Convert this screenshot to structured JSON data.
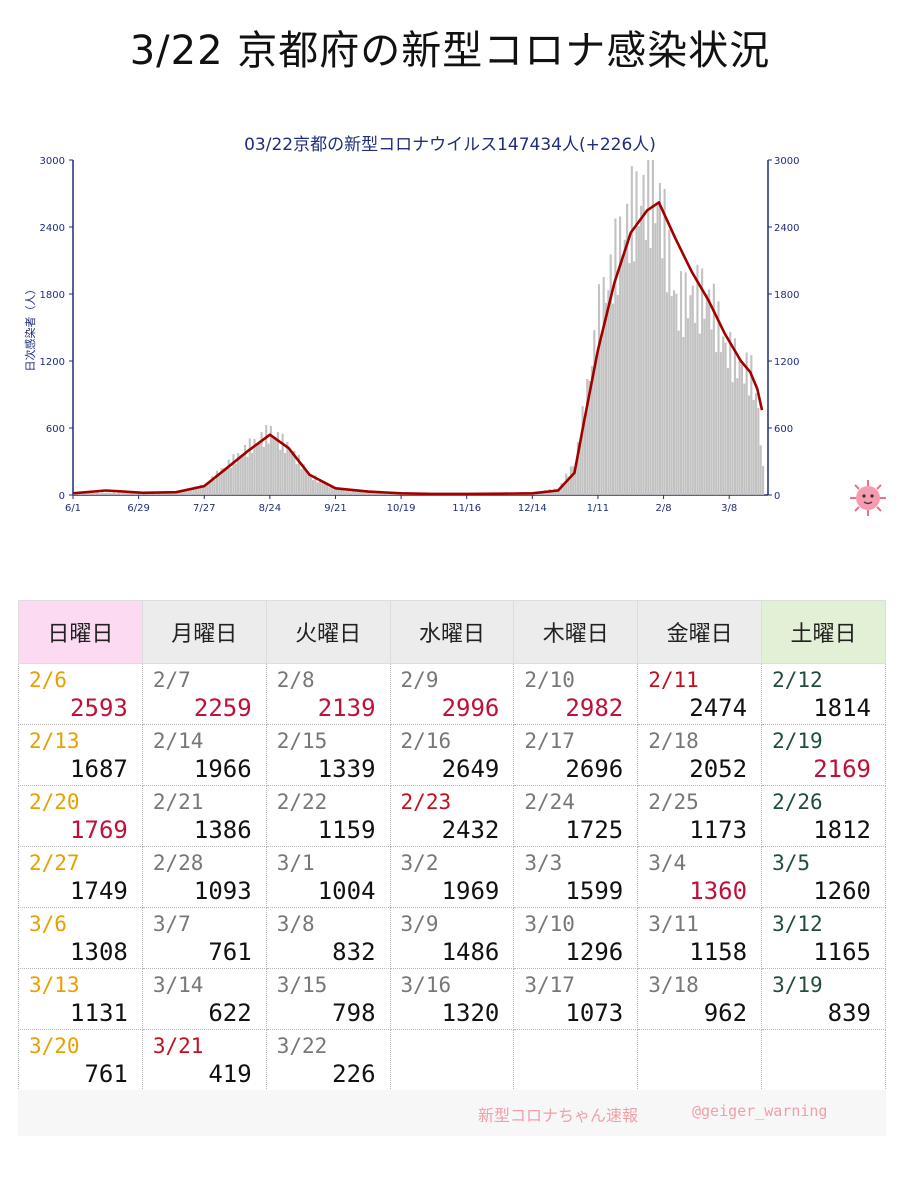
{
  "page": {
    "title": "3/22 京都府の新型コロナ感染状況"
  },
  "chart_data": {
    "type": "bar+line",
    "title": "03/22京都の新型コロナウイルス147434人(+226人)",
    "ylabel": "日次感染者（人）",
    "ylim": [
      0,
      3000
    ],
    "yticks": [
      "0",
      "600",
      "1200",
      "1800",
      "2400",
      "3000"
    ],
    "x_start": "6/1",
    "x_end": "3/22",
    "xticks": [
      "6/1",
      "6/29",
      "7/27",
      "8/24",
      "9/21",
      "10/19",
      "11/16",
      "12/14",
      "1/11",
      "2/8",
      "3/8"
    ],
    "x": [
      "6/1",
      "6/15",
      "7/1",
      "7/15",
      "7/27",
      "8/5",
      "8/15",
      "8/24",
      "9/1",
      "9/10",
      "9/21",
      "10/5",
      "10/19",
      "11/1",
      "11/16",
      "12/1",
      "12/14",
      "12/25",
      "1/1",
      "1/5",
      "1/11",
      "1/18",
      "1/25",
      "2/1",
      "2/6",
      "2/13",
      "2/20",
      "2/27",
      "3/6",
      "3/13",
      "3/17",
      "3/20",
      "3/22"
    ],
    "series": [
      {
        "values": [
          20,
          20,
          18,
          25,
          90,
          260,
          430,
          560,
          410,
          170,
          50,
          25,
          15,
          10,
          10,
          15,
          20,
          60,
          300,
          800,
          1600,
          2100,
          2500,
          2700,
          2593,
          1687,
          1769,
          1749,
          1308,
          1131,
          1073,
          761,
          226
        ]
      },
      {
        "values": [
          15,
          40,
          20,
          25,
          80,
          230,
          400,
          540,
          420,
          180,
          60,
          30,
          15,
          10,
          10,
          12,
          15,
          40,
          200,
          650,
          1300,
          1900,
          2350,
          2550,
          2620,
          2300,
          2000,
          1750,
          1450,
          1200,
          1100,
          950,
          760
        ]
      }
    ],
    "colors": {
      "bars": "#c2c2c2",
      "line": "#a00000",
      "axis": "#1f2d7a"
    }
  },
  "calendar": {
    "headers": [
      "日曜日",
      "月曜日",
      "火曜日",
      "水曜日",
      "木曜日",
      "金曜日",
      "土曜日"
    ],
    "colors": {
      "sun_date": "#e8a000",
      "holiday_date": "#c0101e",
      "sat_date": "#1e4e3a",
      "weekday_date": "#777777",
      "highlight_value": "#c0103a",
      "normal_value": "#111111"
    },
    "rows": [
      [
        {
          "date": "2/6",
          "value": "2593",
          "dc": "sun",
          "hl": true
        },
        {
          "date": "2/7",
          "value": "2259",
          "dc": "wd",
          "hl": true
        },
        {
          "date": "2/8",
          "value": "2139",
          "dc": "wd",
          "hl": true
        },
        {
          "date": "2/9",
          "value": "2996",
          "dc": "wd",
          "hl": true
        },
        {
          "date": "2/10",
          "value": "2982",
          "dc": "wd",
          "hl": true
        },
        {
          "date": "2/11",
          "value": "2474",
          "dc": "hol",
          "hl": false
        },
        {
          "date": "2/12",
          "value": "1814",
          "dc": "sat",
          "hl": false
        }
      ],
      [
        {
          "date": "2/13",
          "value": "1687",
          "dc": "sun",
          "hl": false
        },
        {
          "date": "2/14",
          "value": "1966",
          "dc": "wd",
          "hl": false
        },
        {
          "date": "2/15",
          "value": "1339",
          "dc": "wd",
          "hl": false
        },
        {
          "date": "2/16",
          "value": "2649",
          "dc": "wd",
          "hl": false
        },
        {
          "date": "2/17",
          "value": "2696",
          "dc": "wd",
          "hl": false
        },
        {
          "date": "2/18",
          "value": "2052",
          "dc": "wd",
          "hl": false
        },
        {
          "date": "2/19",
          "value": "2169",
          "dc": "sat",
          "hl": true
        }
      ],
      [
        {
          "date": "2/20",
          "value": "1769",
          "dc": "sun",
          "hl": true
        },
        {
          "date": "2/21",
          "value": "1386",
          "dc": "wd",
          "hl": false
        },
        {
          "date": "2/22",
          "value": "1159",
          "dc": "wd",
          "hl": false
        },
        {
          "date": "2/23",
          "value": "2432",
          "dc": "hol",
          "hl": false
        },
        {
          "date": "2/24",
          "value": "1725",
          "dc": "wd",
          "hl": false
        },
        {
          "date": "2/25",
          "value": "1173",
          "dc": "wd",
          "hl": false
        },
        {
          "date": "2/26",
          "value": "1812",
          "dc": "sat",
          "hl": false
        }
      ],
      [
        {
          "date": "2/27",
          "value": "1749",
          "dc": "sun",
          "hl": false
        },
        {
          "date": "2/28",
          "value": "1093",
          "dc": "wd",
          "hl": false
        },
        {
          "date": "3/1",
          "value": "1004",
          "dc": "wd",
          "hl": false
        },
        {
          "date": "3/2",
          "value": "1969",
          "dc": "wd",
          "hl": false
        },
        {
          "date": "3/3",
          "value": "1599",
          "dc": "wd",
          "hl": false
        },
        {
          "date": "3/4",
          "value": "1360",
          "dc": "wd",
          "hl": true
        },
        {
          "date": "3/5",
          "value": "1260",
          "dc": "sat",
          "hl": false
        }
      ],
      [
        {
          "date": "3/6",
          "value": "1308",
          "dc": "sun",
          "hl": false
        },
        {
          "date": "3/7",
          "value": "761",
          "dc": "wd",
          "hl": false
        },
        {
          "date": "3/8",
          "value": "832",
          "dc": "wd",
          "hl": false
        },
        {
          "date": "3/9",
          "value": "1486",
          "dc": "wd",
          "hl": false
        },
        {
          "date": "3/10",
          "value": "1296",
          "dc": "wd",
          "hl": false
        },
        {
          "date": "3/11",
          "value": "1158",
          "dc": "wd",
          "hl": false
        },
        {
          "date": "3/12",
          "value": "1165",
          "dc": "sat",
          "hl": false
        }
      ],
      [
        {
          "date": "3/13",
          "value": "1131",
          "dc": "sun",
          "hl": false
        },
        {
          "date": "3/14",
          "value": "622",
          "dc": "wd",
          "hl": false
        },
        {
          "date": "3/15",
          "value": "798",
          "dc": "wd",
          "hl": false
        },
        {
          "date": "3/16",
          "value": "1320",
          "dc": "wd",
          "hl": false
        },
        {
          "date": "3/17",
          "value": "1073",
          "dc": "wd",
          "hl": false
        },
        {
          "date": "3/18",
          "value": "962",
          "dc": "wd",
          "hl": false
        },
        {
          "date": "3/19",
          "value": "839",
          "dc": "sat",
          "hl": false
        }
      ],
      [
        {
          "date": "3/20",
          "value": "761",
          "dc": "sun",
          "hl": false
        },
        {
          "date": "3/21",
          "value": "419",
          "dc": "hol",
          "hl": false
        },
        {
          "date": "3/22",
          "value": "226",
          "dc": "wd",
          "hl": false
        },
        null,
        null,
        null,
        null
      ]
    ]
  },
  "footer": {
    "brand": "新型コロナちゃん速報",
    "handle": "@geiger_warning"
  },
  "icons": {
    "mascot": "virus-mascot-icon"
  }
}
